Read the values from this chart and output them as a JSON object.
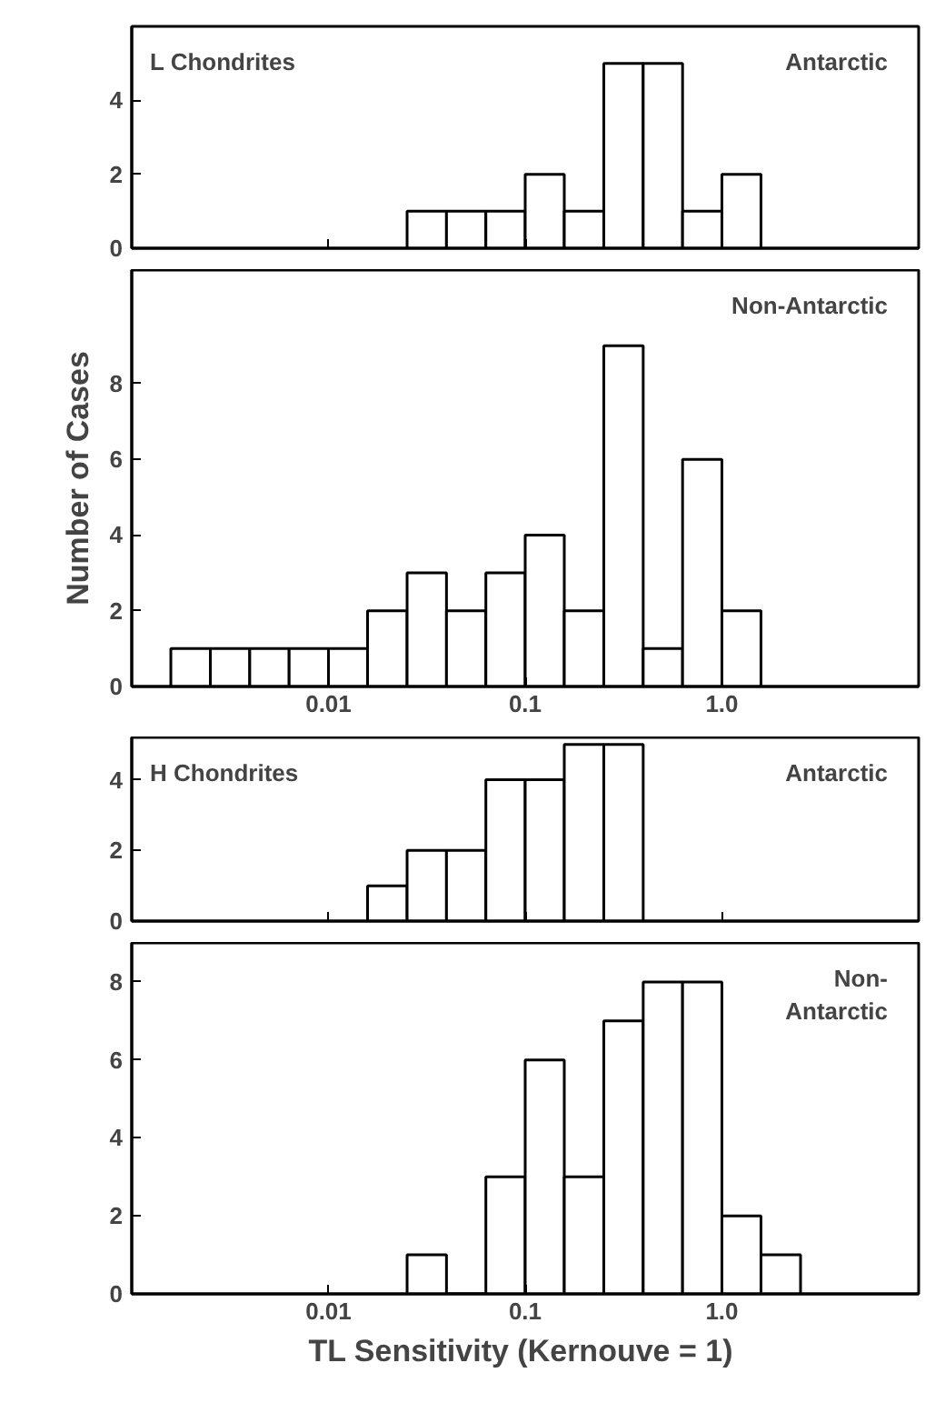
{
  "chart_data": [
    {
      "type": "histogram",
      "annotations": [
        "L Chondrites",
        "Antarctic"
      ],
      "bins": [
        0.0251,
        0.0398,
        0.0631,
        0.1,
        0.158,
        0.251,
        0.398,
        0.631,
        1.0,
        1.58
      ],
      "values": [
        1,
        1,
        1,
        2,
        1,
        5,
        5,
        1,
        2
      ],
      "log": "x",
      "xlim": [
        0.001,
        10
      ],
      "ylim": [
        0,
        6
      ],
      "xticks": [
        {
          "value": 0.01,
          "label": null
        },
        {
          "value": 0.1,
          "label": null
        },
        {
          "value": 1,
          "label": null
        }
      ],
      "yticks": [
        0,
        2,
        4
      ],
      "tick_labels": "y",
      "grid": false
    },
    {
      "type": "histogram",
      "ylabel": "Number of Cases",
      "annotations": [
        "Non-Antarctic"
      ],
      "bins": [
        0.00158,
        0.00251,
        0.00398,
        0.00631,
        0.01,
        0.0158,
        0.0251,
        0.0398,
        0.0631,
        0.1,
        0.158,
        0.251,
        0.398,
        0.631,
        1.0,
        1.58
      ],
      "values": [
        1,
        1,
        1,
        1,
        1,
        2,
        3,
        2,
        3,
        4,
        2,
        9,
        1,
        6,
        2
      ],
      "log": "x",
      "xlim": [
        0.001,
        10
      ],
      "ylim": [
        0,
        11
      ],
      "xticks": [
        {
          "value": 0.01,
          "label": "0.01"
        },
        {
          "value": 0.1,
          "label": "0.1"
        },
        {
          "value": 1,
          "label": "1.0"
        }
      ],
      "yticks": [
        0,
        2,
        4,
        6,
        8
      ],
      "grid": false
    },
    {
      "type": "histogram",
      "annotations": [
        "H Chondrites",
        "Antarctic"
      ],
      "bins": [
        0.0158,
        0.0251,
        0.0398,
        0.0631,
        0.1,
        0.158,
        0.251,
        0.398
      ],
      "values": [
        1,
        2,
        2,
        4,
        4,
        5,
        5
      ],
      "log": "x",
      "xlim": [
        0.001,
        10
      ],
      "ylim": [
        0,
        5.2
      ],
      "xticks": [
        {
          "value": 0.01,
          "label": null
        },
        {
          "value": 0.1,
          "label": null
        },
        {
          "value": 1,
          "label": null
        }
      ],
      "yticks": [
        0,
        2,
        4
      ],
      "tick_labels": "y",
      "grid": false
    },
    {
      "type": "histogram",
      "xlabel": "TL Sensitivity  (Kernouve = 1)",
      "annotations": [
        "Non-\nAntarctic"
      ],
      "bins": [
        0.0251,
        0.0398,
        0.0631,
        0.1,
        0.158,
        0.251,
        0.398,
        0.631,
        1.0,
        1.58,
        2.51
      ],
      "values": [
        1,
        0,
        3,
        6,
        3,
        7,
        8,
        8,
        2,
        1
      ],
      "log": "x",
      "xlim": [
        0.001,
        10
      ],
      "ylim": [
        0,
        9
      ],
      "xticks": [
        {
          "value": 0.01,
          "label": "0.01"
        },
        {
          "value": 0.1,
          "label": "0.1"
        },
        {
          "value": 1,
          "label": "1.0"
        }
      ],
      "yticks": [
        0,
        2,
        4,
        6,
        8
      ],
      "grid": false
    }
  ]
}
